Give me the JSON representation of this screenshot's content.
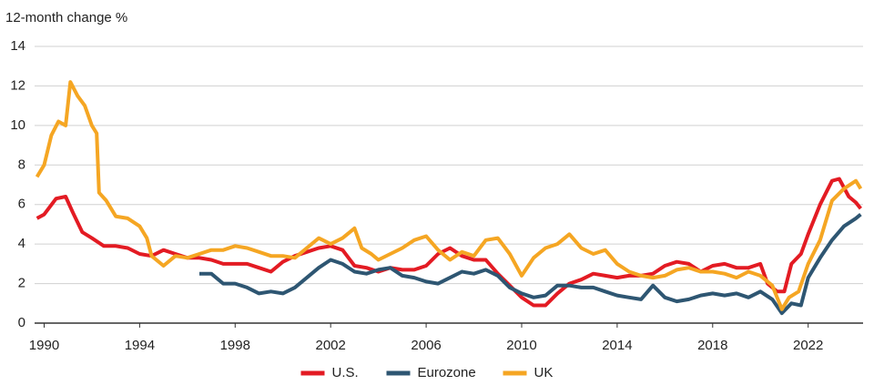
{
  "chart_data": {
    "type": "line",
    "y_axis_label": "12-month change %",
    "xlim": [
      1989.6,
      2024.3
    ],
    "xticks": [
      1990,
      1994,
      1998,
      2002,
      2006,
      2010,
      2014,
      2018,
      2022
    ],
    "ylim": [
      0,
      14
    ],
    "yticks": [
      0,
      2,
      4,
      6,
      8,
      10,
      12,
      14
    ],
    "grid": true,
    "legend": "bottom",
    "series": [
      {
        "name": "U.S.",
        "color": "#e31b23",
        "x": [
          1989.7,
          1990,
          1990.5,
          1990.9,
          1991.2,
          1991.6,
          1992,
          1992.5,
          1993,
          1993.5,
          1994,
          1994.5,
          1995,
          1995.5,
          1996,
          1996.5,
          1997,
          1997.5,
          1998,
          1998.5,
          1999,
          1999.5,
          2000,
          2000.5,
          2001,
          2001.5,
          2002,
          2002.5,
          2003,
          2003.5,
          2004,
          2004.5,
          2005,
          2005.5,
          2006,
          2006.5,
          2007,
          2007.5,
          2008,
          2008.5,
          2009,
          2009.5,
          2010,
          2010.5,
          2011,
          2011.5,
          2012,
          2012.5,
          2013,
          2013.5,
          2014,
          2014.5,
          2015,
          2015.5,
          2016,
          2016.5,
          2017,
          2017.5,
          2018,
          2018.5,
          2019,
          2019.5,
          2020,
          2020.3,
          2020.7,
          2021,
          2021.3,
          2021.7,
          2022,
          2022.5,
          2023,
          2023.3,
          2023.7,
          2024,
          2024.2
        ],
        "values": [
          5.3,
          5.5,
          6.3,
          6.4,
          5.6,
          4.6,
          4.3,
          3.9,
          3.9,
          3.8,
          3.5,
          3.4,
          3.7,
          3.5,
          3.3,
          3.3,
          3.2,
          3.0,
          3.0,
          3.0,
          2.8,
          2.6,
          3.1,
          3.4,
          3.6,
          3.8,
          3.9,
          3.7,
          2.9,
          2.8,
          2.6,
          2.8,
          2.7,
          2.7,
          2.9,
          3.5,
          3.8,
          3.4,
          3.2,
          3.2,
          2.5,
          1.9,
          1.3,
          0.9,
          0.9,
          1.5,
          2.0,
          2.2,
          2.5,
          2.4,
          2.3,
          2.4,
          2.4,
          2.5,
          2.9,
          3.1,
          3.0,
          2.6,
          2.9,
          3.0,
          2.8,
          2.8,
          3.0,
          2.0,
          1.6,
          1.6,
          3.0,
          3.5,
          4.5,
          6.0,
          7.2,
          7.3,
          6.4,
          6.1,
          5.8
        ]
      },
      {
        "name": "Eurozone",
        "color": "#2e5672",
        "x": [
          1996.5,
          1997,
          1997.5,
          1998,
          1998.5,
          1999,
          1999.5,
          2000,
          2000.5,
          2001,
          2001.5,
          2002,
          2002.5,
          2003,
          2003.5,
          2004,
          2004.5,
          2005,
          2005.5,
          2006,
          2006.5,
          2007,
          2007.5,
          2008,
          2008.5,
          2009,
          2009.5,
          2010,
          2010.5,
          2011,
          2011.5,
          2012,
          2012.5,
          2013,
          2013.5,
          2014,
          2014.5,
          2015,
          2015.5,
          2016,
          2016.5,
          2017,
          2017.5,
          2018,
          2018.5,
          2019,
          2019.5,
          2020,
          2020.5,
          2020.9,
          2021.3,
          2021.7,
          2022,
          2022.5,
          2023,
          2023.5,
          2024,
          2024.2
        ],
        "values": [
          2.5,
          2.5,
          2.0,
          2.0,
          1.8,
          1.5,
          1.6,
          1.5,
          1.8,
          2.3,
          2.8,
          3.2,
          3.0,
          2.6,
          2.5,
          2.7,
          2.8,
          2.4,
          2.3,
          2.1,
          2.0,
          2.3,
          2.6,
          2.5,
          2.7,
          2.4,
          1.8,
          1.5,
          1.3,
          1.4,
          1.9,
          1.9,
          1.8,
          1.8,
          1.6,
          1.4,
          1.3,
          1.2,
          1.9,
          1.3,
          1.1,
          1.2,
          1.4,
          1.5,
          1.4,
          1.5,
          1.3,
          1.6,
          1.2,
          0.5,
          1.0,
          0.9,
          2.3,
          3.3,
          4.2,
          4.9,
          5.3,
          5.5
        ]
      },
      {
        "name": "UK",
        "color": "#f5a623",
        "x": [
          1989.7,
          1990,
          1990.3,
          1990.6,
          1990.9,
          1991.1,
          1991.4,
          1991.7,
          1992,
          1992.2,
          1992.3,
          1992.6,
          1993,
          1993.5,
          1994,
          1994.3,
          1994.5,
          1995,
          1995.5,
          1996,
          1996.5,
          1997,
          1997.5,
          1998,
          1998.5,
          1999,
          1999.5,
          2000,
          2000.5,
          2001,
          2001.5,
          2002,
          2002.5,
          2003,
          2003.3,
          2003.7,
          2004,
          2004.5,
          2005,
          2005.5,
          2006,
          2006.5,
          2007,
          2007.5,
          2008,
          2008.5,
          2009,
          2009.5,
          2010,
          2010.5,
          2011,
          2011.5,
          2012,
          2012.5,
          2013,
          2013.5,
          2014,
          2014.5,
          2015,
          2015.5,
          2016,
          2016.5,
          2017,
          2017.5,
          2018,
          2018.5,
          2019,
          2019.5,
          2020,
          2020.5,
          2020.9,
          2021.2,
          2021.6,
          2022,
          2022.5,
          2023,
          2023.5,
          2024,
          2024.2
        ],
        "values": [
          7.4,
          8.0,
          9.5,
          10.2,
          10.0,
          12.2,
          11.5,
          11.0,
          10.0,
          9.6,
          6.6,
          6.2,
          5.4,
          5.3,
          4.9,
          4.3,
          3.4,
          2.9,
          3.4,
          3.3,
          3.5,
          3.7,
          3.7,
          3.9,
          3.8,
          3.6,
          3.4,
          3.4,
          3.3,
          3.8,
          4.3,
          4.0,
          4.3,
          4.8,
          3.8,
          3.5,
          3.2,
          3.5,
          3.8,
          4.2,
          4.4,
          3.7,
          3.2,
          3.6,
          3.4,
          4.2,
          4.3,
          3.5,
          2.4,
          3.3,
          3.8,
          4.0,
          4.5,
          3.8,
          3.5,
          3.7,
          3.0,
          2.6,
          2.4,
          2.3,
          2.4,
          2.7,
          2.8,
          2.6,
          2.6,
          2.5,
          2.3,
          2.6,
          2.4,
          1.9,
          0.7,
          1.3,
          1.6,
          3.0,
          4.2,
          6.2,
          6.8,
          7.2,
          6.8
        ]
      }
    ]
  }
}
